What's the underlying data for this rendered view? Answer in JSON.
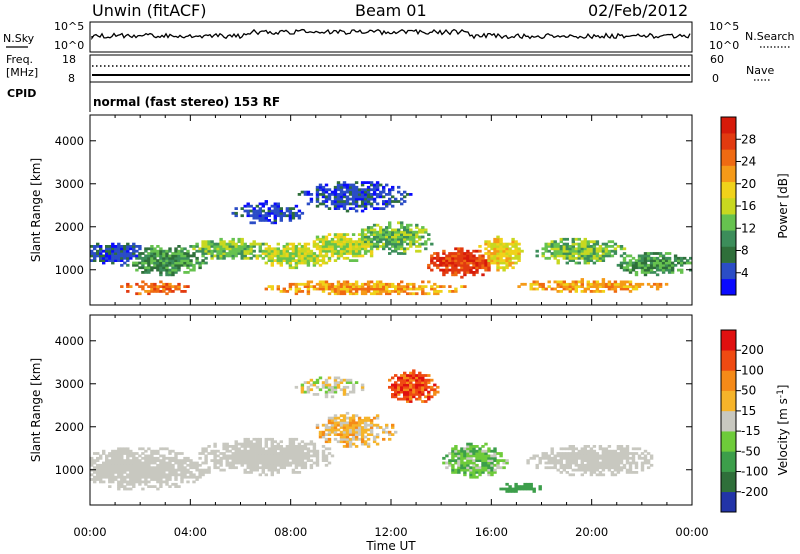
{
  "header": {
    "title": "Unwin (fitACF)",
    "beam": "Beam 01",
    "date": "02/Feb/2012"
  },
  "status": {
    "nsky_label": "N.Sky",
    "nsky_ticks": [
      "10^5",
      "10^0"
    ],
    "nsearch_label": "N.Search",
    "nsearch_ticks": [
      "10^5",
      "10^0"
    ],
    "freq_label": "Freq.",
    "freq_unit": "[MHz]",
    "freq_ticks": [
      "18",
      "8"
    ],
    "nave_label": "Nave",
    "nave_ticks": [
      "60",
      "0"
    ],
    "cpid_label": "CPID",
    "cpid_text": "normal (fast stereo) 153 RF"
  },
  "chart_data": [
    {
      "type": "heatmap",
      "panel": "power",
      "ylabel": "Slant Range [km]",
      "ylim": [
        180,
        4600
      ],
      "yticks": [
        "1000",
        "2000",
        "3000",
        "4000"
      ],
      "xlim": [
        0,
        24
      ],
      "xticks": [
        "00:00",
        "04:00",
        "08:00",
        "12:00",
        "16:00",
        "20:00",
        "00:00"
      ],
      "colorbar": {
        "label": "Power [dB]",
        "ticks": [
          "4",
          "8",
          "12",
          "16",
          "20",
          "24",
          "28"
        ],
        "colors": [
          "#0a0aff",
          "#2b4dc6",
          "#2f6f3a",
          "#3c8d5a",
          "#66c24f",
          "#c8d820",
          "#f0d21a",
          "#f59a18",
          "#ef6a12",
          "#e23a10",
          "#d61a0a"
        ]
      }
    },
    {
      "type": "heatmap",
      "panel": "velocity",
      "ylabel": "Slant Range [km]",
      "ylim": [
        180,
        4600
      ],
      "yticks": [
        "1000",
        "2000",
        "3000",
        "4000"
      ],
      "xlim": [
        0,
        24
      ],
      "xticks": [
        "00:00",
        "04:00",
        "08:00",
        "12:00",
        "16:00",
        "20:00",
        "00:00"
      ],
      "xlabel": "Time UT",
      "colorbar": {
        "label_main": "Velocity [m s",
        "label_sup": "-1",
        "label_end": "]",
        "ticks": [
          "200",
          "100",
          "50",
          "15",
          "-15",
          "-50",
          "-100",
          "-200"
        ],
        "colors": [
          "#2234a8",
          "#2f6f3a",
          "#3c9e4a",
          "#6ecb3a",
          "#c8c8c0",
          "#f6b42a",
          "#f58a18",
          "#ef4a12",
          "#e01010"
        ]
      }
    }
  ]
}
